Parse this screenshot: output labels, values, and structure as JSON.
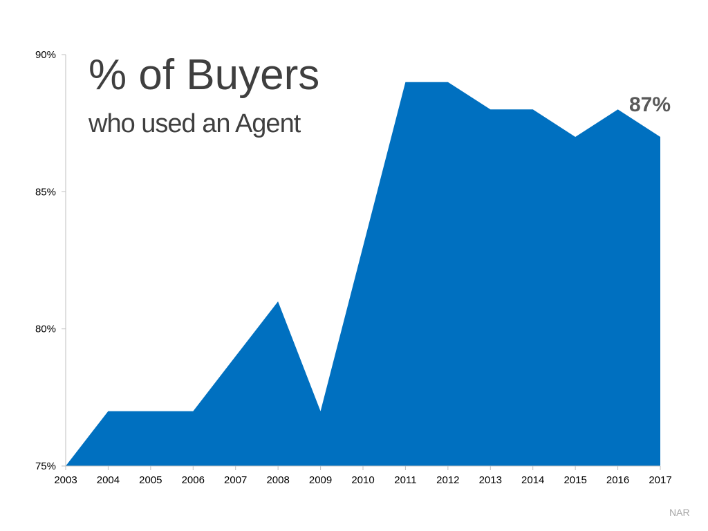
{
  "title": "% of Buyers",
  "subtitle": "who used an Agent",
  "annotation": "87%",
  "source": "NAR",
  "colors": {
    "area": "#0070c0",
    "text": "#3f3f3f",
    "annotation": "#595959",
    "source": "#a6a6a6",
    "axis": "#bfbfbf"
  },
  "chart_data": {
    "type": "area",
    "title": "% of Buyers",
    "subtitle": "who used an Agent",
    "xlabel": "",
    "ylabel": "",
    "categories": [
      "2003",
      "2004",
      "2005",
      "2006",
      "2007",
      "2008",
      "2009",
      "2010",
      "2011",
      "2012",
      "2013",
      "2014",
      "2015",
      "2016",
      "2017"
    ],
    "values": [
      75,
      77,
      77,
      77,
      79,
      81,
      77,
      83,
      89,
      89,
      88,
      88,
      87,
      88,
      87
    ],
    "ylim": [
      75,
      90
    ],
    "yticks": [
      75,
      80,
      85,
      90
    ],
    "ytick_labels": [
      "75%",
      "80%",
      "85%",
      "90%"
    ],
    "grid": false,
    "legend": "none",
    "annotations": [
      {
        "category": "2016",
        "text": "87%"
      }
    ]
  }
}
